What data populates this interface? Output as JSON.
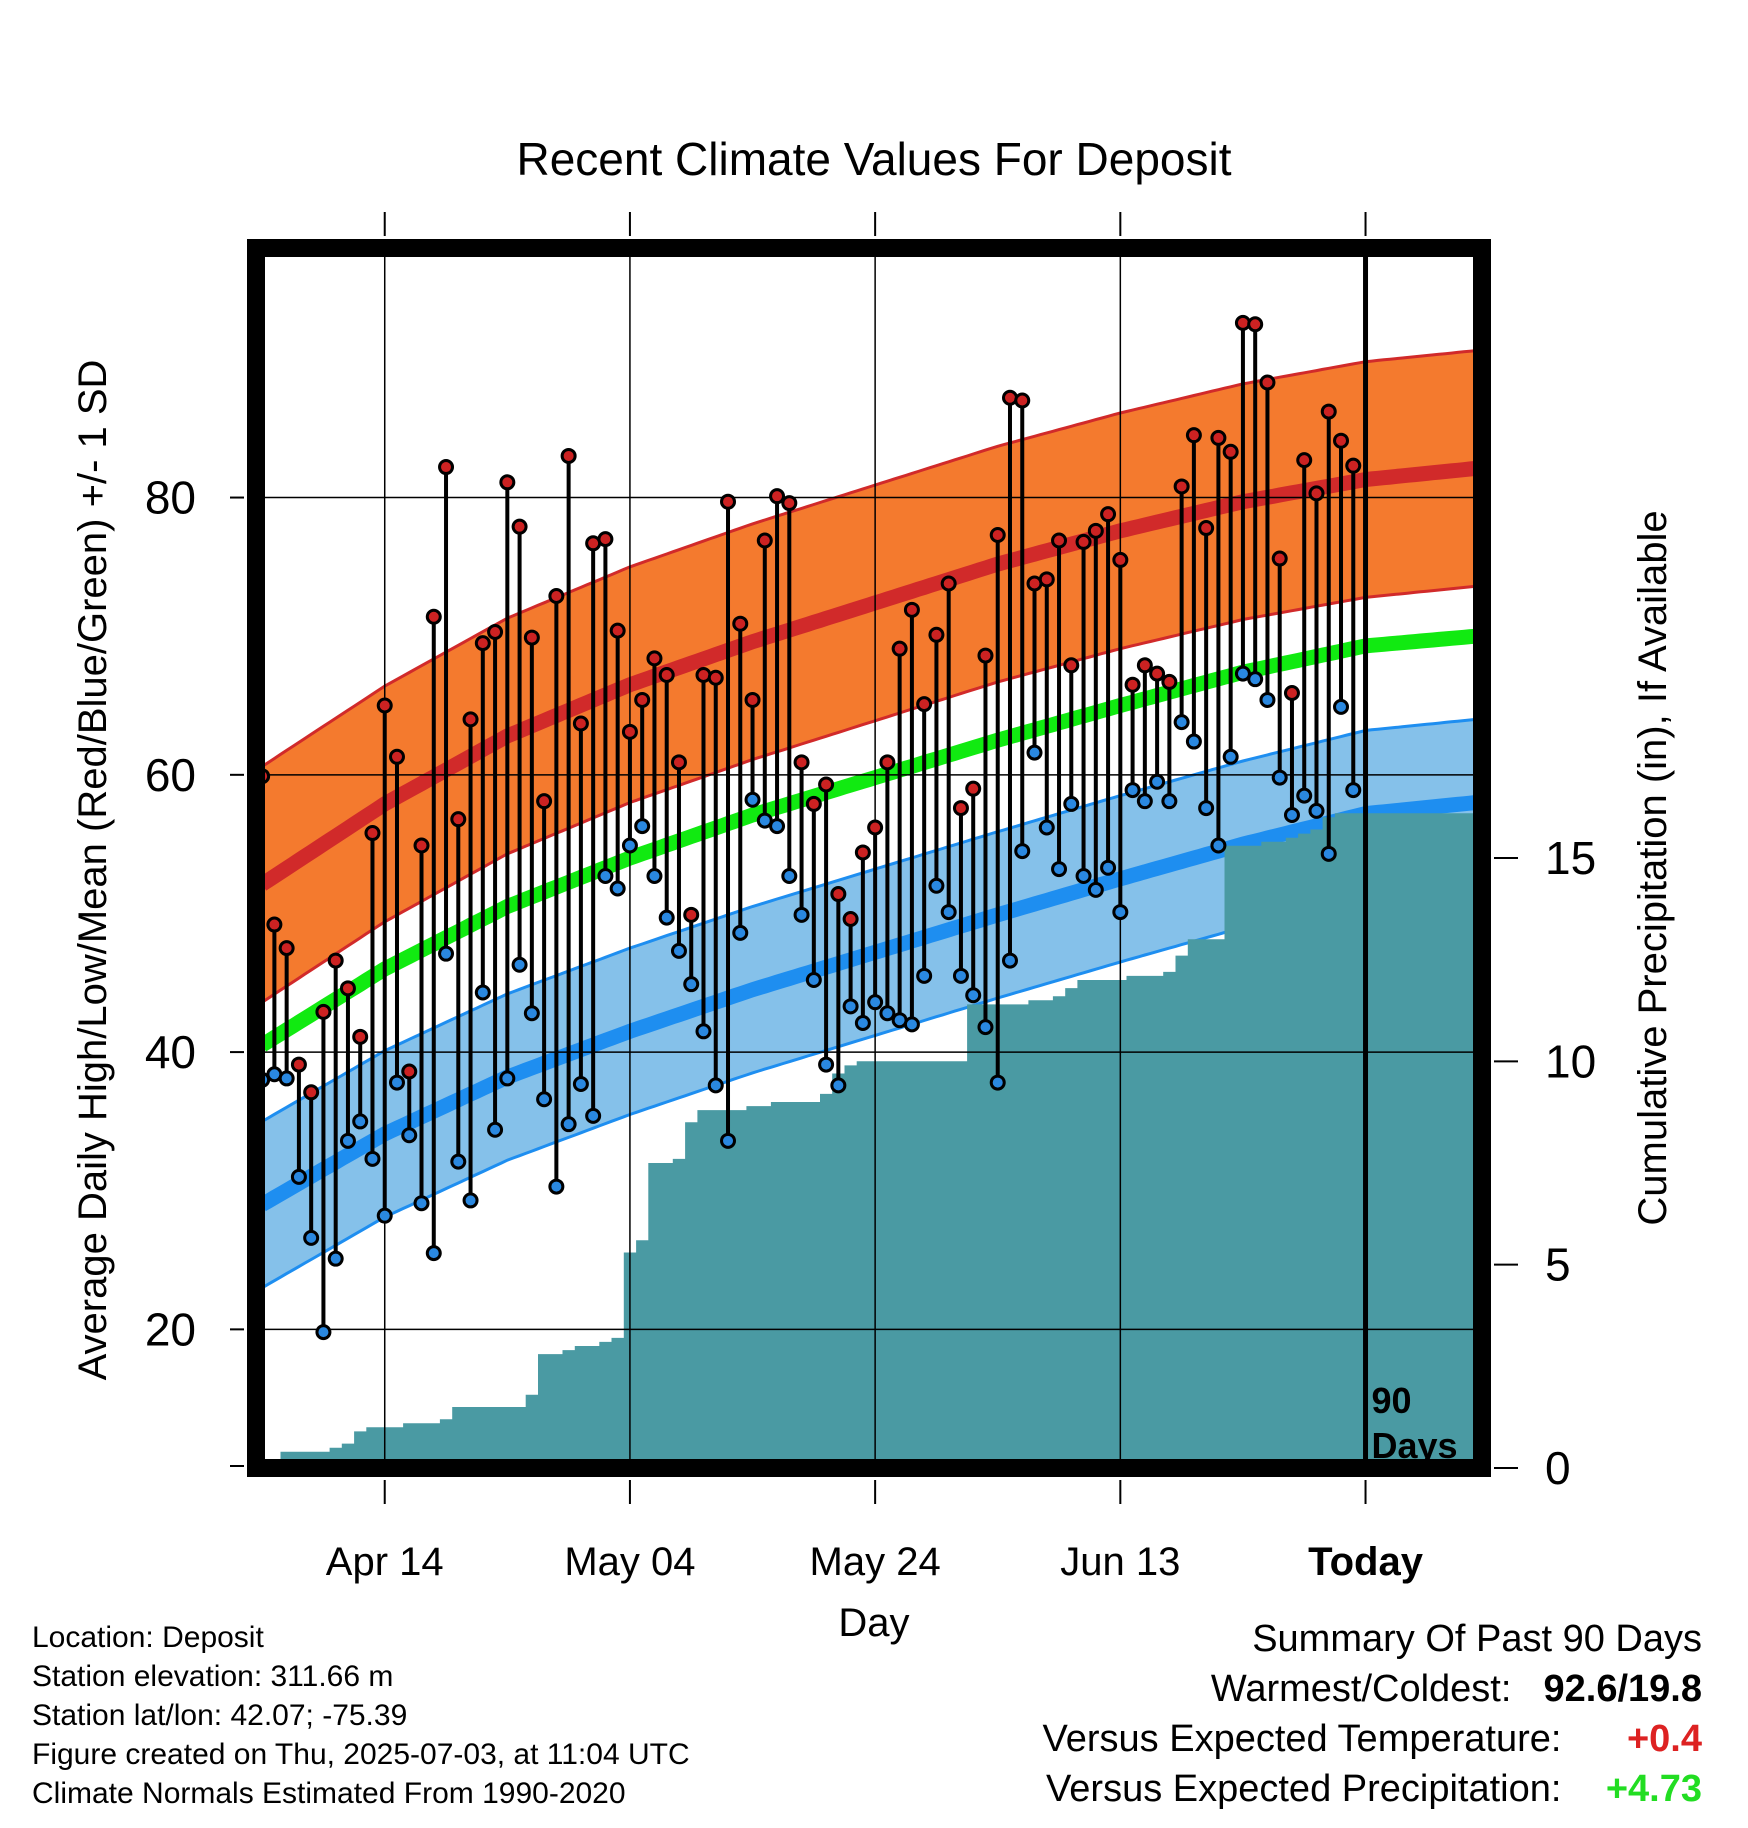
{
  "chart_data": {
    "type": "line",
    "title": "Recent Climate Values For Deposit",
    "xlabel": "Day",
    "ylabel": "Average Daily High/Low/Mean (Red/Blue/Green) +/- 1 SD",
    "y2label": "Cumulative Precipitation (in), If Available",
    "ylim": [
      10,
      98
    ],
    "y2lim": [
      0,
      30
    ],
    "yticks": [
      20,
      40,
      60,
      80
    ],
    "y2ticks": [
      0,
      5,
      10,
      15
    ],
    "xlim": [
      -0.5,
      99.5
    ],
    "x_ticks": [
      {
        "day": 10,
        "label": "Apr 14"
      },
      {
        "day": 30,
        "label": "May 04"
      },
      {
        "day": 50,
        "label": "May 24"
      },
      {
        "day": 70,
        "label": "Jun 13"
      },
      {
        "day": 90,
        "label": "Today"
      }
    ],
    "today_marker": {
      "day": 90,
      "label_line1": "90",
      "label_line2": "Days"
    },
    "grid": true,
    "colors": {
      "high_band": "#f47a2e",
      "high_line": "#d12a2a",
      "low_band": "#85c1ea",
      "low_line": "#1e8ef0",
      "mean_line": "#11ea11",
      "precip": "#4a9aa3",
      "high_marker": "#cc2222",
      "low_marker": "#2a88e0",
      "plus_temp": "#dd2222",
      "plus_precip": "#22dd22"
    },
    "normals": {
      "days": [
        0,
        10,
        20,
        30,
        40,
        50,
        60,
        70,
        80,
        90,
        99
      ],
      "high_mean": [
        52.1,
        57.9,
        62.8,
        66.5,
        69.6,
        72.4,
        75.2,
        77.6,
        79.7,
        81.3,
        82.1
      ],
      "high_sd": 8.5,
      "low_mean": [
        29.0,
        34.1,
        38.2,
        41.5,
        44.5,
        47.2,
        49.9,
        52.5,
        55.0,
        57.2,
        58.0
      ],
      "low_sd": 6.0,
      "mean": [
        40.5,
        46.0,
        50.5,
        54.0,
        57.1,
        59.8,
        62.5,
        65.0,
        67.4,
        69.3,
        70.0
      ]
    },
    "series": [
      {
        "name": "High",
        "values": [
          59.9,
          49.2,
          47.5,
          39.1,
          37.1,
          42.9,
          46.6,
          44.6,
          41.1,
          55.8,
          65.0,
          61.3,
          38.6,
          54.9,
          71.4,
          82.2,
          56.8,
          64.0,
          69.5,
          70.3,
          81.1,
          77.9,
          69.9,
          58.1,
          72.9,
          83.0,
          63.7,
          76.7,
          77.0,
          70.4,
          63.1,
          65.4,
          68.4,
          67.2,
          60.9,
          49.9,
          67.2,
          67.0,
          79.7,
          70.9,
          65.4,
          76.9,
          80.1,
          79.6,
          60.9,
          57.9,
          59.3,
          51.4,
          49.6,
          54.4,
          56.2,
          60.9,
          69.1,
          71.9,
          65.1,
          70.1,
          73.8,
          57.6,
          59.0,
          68.6,
          77.3,
          87.2,
          87.0,
          73.8,
          74.1,
          76.9,
          67.9,
          76.8,
          77.6,
          78.8,
          75.5,
          66.5,
          67.9,
          67.3,
          66.7,
          80.8,
          84.5,
          77.8,
          84.3,
          83.3,
          92.6,
          92.5,
          88.3,
          75.6,
          65.9,
          82.7,
          80.3,
          86.2,
          84.1,
          82.3
        ]
      },
      {
        "name": "Low",
        "values": [
          38.0,
          38.4,
          38.1,
          31.0,
          26.6,
          19.8,
          25.1,
          33.6,
          35.0,
          32.3,
          28.2,
          37.8,
          34.0,
          29.1,
          25.5,
          47.1,
          32.1,
          29.3,
          44.3,
          34.4,
          38.1,
          46.3,
          42.8,
          36.6,
          30.3,
          34.8,
          37.7,
          35.4,
          52.7,
          51.8,
          54.9,
          56.3,
          52.7,
          49.7,
          47.3,
          44.9,
          41.5,
          37.6,
          33.6,
          48.6,
          58.2,
          56.7,
          56.3,
          52.7,
          49.9,
          45.2,
          39.1,
          37.6,
          43.3,
          42.1,
          43.6,
          42.8,
          42.3,
          42.0,
          45.5,
          52.0,
          50.1,
          45.5,
          44.1,
          41.8,
          37.8,
          46.6,
          54.5,
          61.6,
          56.2,
          53.2,
          57.9,
          52.7,
          51.7,
          53.3,
          50.1,
          58.9,
          58.1,
          59.5,
          58.1,
          63.8,
          62.4,
          57.6,
          54.9,
          61.3,
          67.3,
          66.9,
          65.4,
          59.8,
          57.1,
          58.5,
          57.4,
          54.3,
          64.9,
          58.9
        ]
      }
    ],
    "precip_cumulative": [
      0.0,
      0.2,
      0.4,
      0.4,
      0.4,
      0.4,
      0.5,
      0.6,
      0.9,
      1.0,
      1.0,
      1.0,
      1.1,
      1.1,
      1.1,
      1.2,
      1.5,
      1.5,
      1.5,
      1.5,
      1.5,
      1.5,
      1.8,
      2.8,
      2.8,
      2.9,
      3.0,
      3.0,
      3.1,
      3.2,
      5.3,
      5.6,
      7.5,
      7.5,
      7.6,
      8.5,
      8.8,
      8.8,
      8.8,
      8.8,
      8.9,
      8.9,
      9.0,
      9.0,
      9.0,
      9.0,
      9.2,
      9.7,
      9.9,
      10.0,
      10.0,
      10.0,
      10.0,
      10.0,
      10.0,
      10.0,
      10.0,
      10.0,
      11.4,
      11.4,
      11.4,
      11.4,
      11.4,
      11.5,
      11.5,
      11.6,
      11.8,
      12.0,
      12.0,
      12.0,
      12.0,
      12.1,
      12.1,
      12.1,
      12.2,
      12.6,
      13.0,
      13.0,
      13.0,
      15.3,
      15.3,
      15.3,
      15.4,
      15.4,
      15.5,
      15.6,
      15.7,
      16.0,
      16.1,
      16.1,
      16.1,
      16.1,
      16.1,
      16.1,
      16.1,
      16.1,
      16.1,
      16.1,
      16.1,
      16.1
    ]
  },
  "footer": {
    "location": "Location: Deposit",
    "elevation": "Station elevation: 311.66 m",
    "latlon": "Station lat/lon: 42.07; -75.39",
    "created": "Figure created on Thu, 2025-07-03, at 11:04 UTC",
    "normals": "Climate Normals Estimated From 1990-2020"
  },
  "summary": {
    "title": "Summary Of Past 90 Days",
    "warm_label": "Warmest/Coldest:",
    "warm_value": "92.6/19.8",
    "temp_label": "Versus Expected Temperature:",
    "temp_value": "+0.4",
    "precip_label": "Versus Expected Precipitation:",
    "precip_value": "+4.73"
  }
}
